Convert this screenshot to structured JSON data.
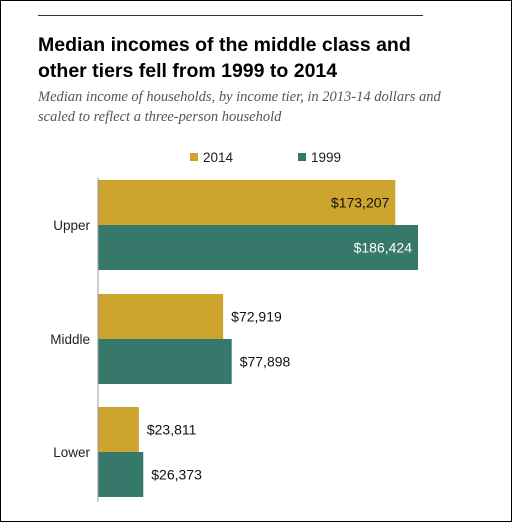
{
  "title": "Median incomes of the middle class and other tiers fell from 1999 to 2014",
  "subtitle": "Median income of households, by income tier, in 2013-14 dollars and scaled to reflect a three-person household",
  "colors": {
    "series_2014": "#cda42d",
    "series_1999": "#36796a",
    "axis": "#999999"
  },
  "chart_data": {
    "type": "bar",
    "orientation": "horizontal",
    "categories": [
      "Upper",
      "Middle",
      "Lower"
    ],
    "series": [
      {
        "name": "2014",
        "color": "#cda42d",
        "values": [
          173207,
          72919,
          23811
        ],
        "labels": [
          "$173,207",
          "$72,919",
          "$23,811"
        ]
      },
      {
        "name": "1999",
        "color": "#36796a",
        "values": [
          186424,
          77898,
          26373
        ],
        "labels": [
          "$186,424",
          "$77,898",
          "$26,373"
        ]
      }
    ],
    "legend_position": "top",
    "grid": false,
    "xlim": [
      0,
      186424
    ]
  }
}
